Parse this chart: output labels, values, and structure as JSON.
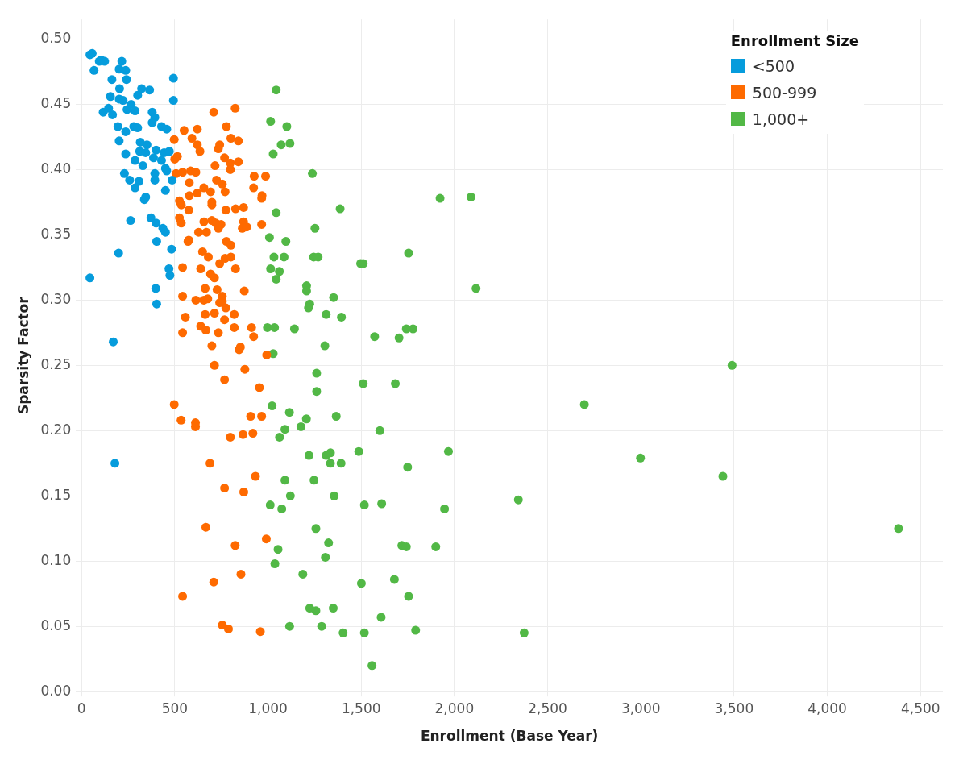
{
  "chart_data": {
    "type": "scatter",
    "xlabel": "Enrollment (Base Year)",
    "ylabel": "Sparsity Factor",
    "legend_title": "Enrollment Size",
    "legend": "top right",
    "grid": true,
    "marker": "circle",
    "xlim": [
      -30,
      4620
    ],
    "ylim": [
      0,
      0.515
    ],
    "xticks": [
      0,
      500,
      {
        "value": 1000,
        "label": "1,000"
      },
      {
        "value": 1500,
        "label": "1,500"
      },
      {
        "value": 2000,
        "label": "2,000"
      },
      {
        "value": 2500,
        "label": "2,500"
      },
      {
        "value": 3000,
        "label": "3,000"
      },
      {
        "value": 3500,
        "label": "3,500"
      },
      {
        "value": 4000,
        "label": "4,000"
      },
      {
        "value": 4500,
        "label": "4,500"
      }
    ],
    "yticks": [
      {
        "value": 0,
        "label": "0.00"
      },
      {
        "value": 0.05,
        "label": "0.05"
      },
      {
        "value": 0.1,
        "label": "0.10"
      },
      {
        "value": 0.15,
        "label": "0.15"
      },
      {
        "value": 0.2,
        "label": "0.20"
      },
      {
        "value": 0.25,
        "label": "0.25"
      },
      {
        "value": 0.3,
        "label": "0.30"
      },
      {
        "value": 0.35,
        "label": "0.35"
      },
      {
        "value": 0.4,
        "label": "0.40"
      },
      {
        "value": 0.45,
        "label": "0.45"
      },
      {
        "value": 0.5,
        "label": "0.50"
      }
    ],
    "series": [
      {
        "name": "<500",
        "color": "#069cdc",
        "x": [
          45,
          57,
          67,
          95,
          105,
          124,
          216,
          202,
          237,
          163,
          241,
          493,
          204,
          155,
          202,
          223,
          493,
          116,
          145,
          166,
          244,
          266,
          287,
          301,
          322,
          365,
          379,
          393,
          379,
          429,
          457,
          195,
          237,
          202,
          280,
          301,
          315,
          351,
          237,
          312,
          344,
          400,
          443,
          471,
          287,
          329,
          386,
          429,
          450,
          230,
          258,
          287,
          308,
          344,
          337,
          393,
          393,
          457,
          450,
          486,
          263,
          372,
          400,
          436,
          450,
          403,
          483,
          199,
          45,
          469,
          474,
          398,
          403,
          170,
          179
        ],
        "values": [
          0.488,
          0.489,
          0.476,
          0.483,
          0.484,
          0.483,
          0.483,
          0.477,
          0.476,
          0.469,
          0.469,
          0.47,
          0.462,
          0.456,
          0.454,
          0.453,
          0.453,
          0.444,
          0.447,
          0.442,
          0.446,
          0.45,
          0.445,
          0.457,
          0.462,
          0.461,
          0.444,
          0.44,
          0.436,
          0.433,
          0.431,
          0.433,
          0.429,
          0.422,
          0.433,
          0.432,
          0.421,
          0.419,
          0.412,
          0.414,
          0.413,
          0.415,
          0.413,
          0.414,
          0.407,
          0.403,
          0.409,
          0.407,
          0.401,
          0.397,
          0.392,
          0.386,
          0.391,
          0.379,
          0.377,
          0.397,
          0.392,
          0.399,
          0.384,
          0.392,
          0.361,
          0.363,
          0.359,
          0.355,
          0.352,
          0.345,
          0.339,
          0.336,
          0.317,
          0.324,
          0.319,
          0.309,
          0.297,
          0.268,
          0.175
        ]
      },
      {
        "name": "500-999",
        "color": "#fe6a00",
        "x": [
          497,
          550,
          621,
          709,
          824,
          777,
          592,
          621,
          635,
          500,
          514,
          741,
          734,
          801,
          841,
          767,
          798,
          798,
          841,
          507,
          542,
          585,
          613,
          578,
          716,
          724,
          755,
          770,
          926,
          987,
          923,
          968,
          966,
          578,
          621,
          656,
          692,
          525,
          535,
          699,
          699,
          575,
          774,
          826,
          869,
          525,
          535,
          656,
          699,
          720,
          748,
          734,
          869,
          862,
          886,
          966,
          628,
          670,
          575,
          571,
          777,
          801,
          649,
          680,
          741,
          770,
          801,
          542,
          639,
          826,
          692,
          713,
          663,
          727,
          755,
          755,
          873,
          542,
          613,
          656,
          677,
          741,
          774,
          713,
          663,
          819,
          557,
          767,
          639,
          667,
          819,
          912,
          923,
          542,
          734,
          699,
          852,
          845,
          993,
          713,
          876,
          767,
          954,
          497,
          534,
          611,
          611,
          907,
          966,
          798,
          866,
          919,
          689,
          933,
          767,
          870,
          667,
          991,
          824,
          855,
          709,
          542,
          755,
          788,
          959
        ],
        "values": [
          0.423,
          0.43,
          0.431,
          0.444,
          0.447,
          0.433,
          0.424,
          0.419,
          0.414,
          0.408,
          0.41,
          0.419,
          0.416,
          0.424,
          0.422,
          0.409,
          0.405,
          0.4,
          0.406,
          0.397,
          0.398,
          0.399,
          0.398,
          0.39,
          0.403,
          0.392,
          0.389,
          0.383,
          0.395,
          0.395,
          0.386,
          0.38,
          0.378,
          0.38,
          0.382,
          0.386,
          0.383,
          0.376,
          0.373,
          0.375,
          0.373,
          0.369,
          0.369,
          0.37,
          0.371,
          0.363,
          0.359,
          0.36,
          0.361,
          0.359,
          0.358,
          0.355,
          0.36,
          0.355,
          0.356,
          0.358,
          0.352,
          0.352,
          0.346,
          0.345,
          0.345,
          0.342,
          0.337,
          0.333,
          0.328,
          0.332,
          0.333,
          0.325,
          0.324,
          0.324,
          0.32,
          0.317,
          0.309,
          0.308,
          0.303,
          0.299,
          0.307,
          0.303,
          0.3,
          0.3,
          0.301,
          0.298,
          0.294,
          0.29,
          0.289,
          0.289,
          0.287,
          0.285,
          0.28,
          0.277,
          0.279,
          0.279,
          0.272,
          0.275,
          0.275,
          0.265,
          0.264,
          0.262,
          0.258,
          0.25,
          0.247,
          0.239,
          0.233,
          0.22,
          0.208,
          0.206,
          0.203,
          0.211,
          0.211,
          0.195,
          0.197,
          0.198,
          0.175,
          0.165,
          0.156,
          0.153,
          0.126,
          0.117,
          0.112,
          0.09,
          0.084,
          0.073,
          0.051,
          0.048,
          0.046
        ]
      },
      {
        "name": "1,000+",
        "color": "#52b846",
        "x": [
          1044,
          1014,
          1101,
          1071,
          1118,
          1028,
          1238,
          1387,
          1044,
          1252,
          1008,
          1096,
          1754,
          1032,
          1086,
          1245,
          1269,
          1497,
          1511,
          1014,
          1061,
          1044,
          1207,
          1207,
          1352,
          1224,
          1217,
          1312,
          1394,
          997,
          1035,
          1142,
          1742,
          1778,
          1572,
          1703,
          1305,
          1028,
          1923,
          2089,
          2116,
          1261,
          1261,
          1511,
          1683,
          1022,
          1115,
          1206,
          1177,
          1091,
          1062,
          1366,
          1600,
          1220,
          1312,
          1335,
          1335,
          1392,
          1487,
          1749,
          1091,
          1247,
          1120,
          1355,
          1012,
          1074,
          1517,
          1610,
          1257,
          1325,
          1054,
          1308,
          1037,
          1718,
          1742,
          1187,
          1501,
          1678,
          1754,
          1224,
          1257,
          1350,
          1607,
          1116,
          1288,
          1403,
          1517,
          1558,
          1792,
          2697,
          1968,
          2998,
          2343,
          1947,
          1900,
          2374,
          3489,
          3440,
          4382
        ],
        "values": [
          0.461,
          0.437,
          0.433,
          0.419,
          0.42,
          0.412,
          0.397,
          0.37,
          0.367,
          0.355,
          0.348,
          0.345,
          0.336,
          0.333,
          0.333,
          0.333,
          0.333,
          0.328,
          0.328,
          0.324,
          0.322,
          0.316,
          0.311,
          0.307,
          0.302,
          0.297,
          0.294,
          0.289,
          0.287,
          0.279,
          0.279,
          0.278,
          0.278,
          0.278,
          0.272,
          0.271,
          0.265,
          0.259,
          0.378,
          0.379,
          0.309,
          0.244,
          0.23,
          0.236,
          0.236,
          0.219,
          0.214,
          0.209,
          0.203,
          0.201,
          0.195,
          0.211,
          0.2,
          0.181,
          0.181,
          0.183,
          0.175,
          0.175,
          0.184,
          0.172,
          0.162,
          0.162,
          0.15,
          0.15,
          0.143,
          0.14,
          0.143,
          0.144,
          0.125,
          0.114,
          0.109,
          0.103,
          0.098,
          0.112,
          0.111,
          0.09,
          0.083,
          0.086,
          0.073,
          0.064,
          0.062,
          0.064,
          0.057,
          0.05,
          0.05,
          0.045,
          0.045,
          0.02,
          0.047,
          0.22,
          0.184,
          0.179,
          0.147,
          0.14,
          0.111,
          0.045,
          0.25,
          0.165,
          0.125
        ]
      }
    ]
  }
}
